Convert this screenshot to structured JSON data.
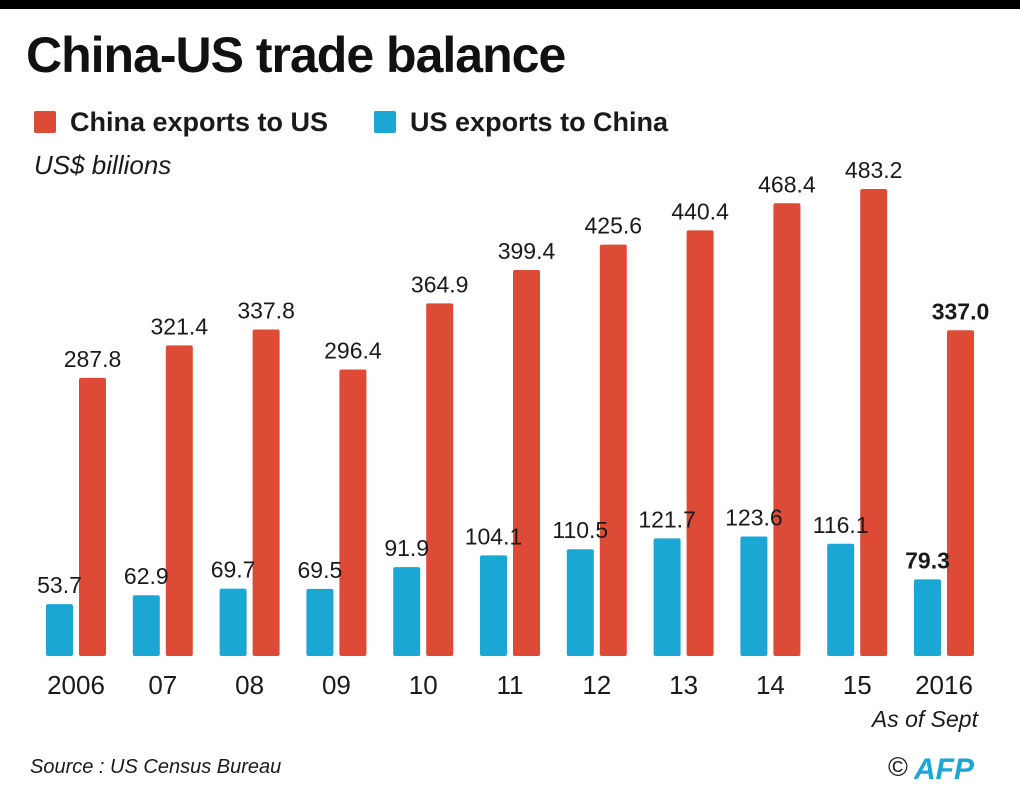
{
  "title": "China-US trade balance",
  "units": "US$ billions",
  "note": "As of Sept",
  "source": "Source : US Census Bureau",
  "credit": {
    "symbol": "©",
    "logo_text": "AFP",
    "logo_icon": "afp-logo"
  },
  "colors": {
    "china": "#dd4b36",
    "us": "#1aa7d4",
    "text": "#1a1a1a"
  },
  "chart_data": {
    "type": "bar",
    "categories": [
      "2006",
      "07",
      "08",
      "09",
      "10",
      "11",
      "12",
      "13",
      "14",
      "15",
      "2016"
    ],
    "series": [
      {
        "name": "US exports to China",
        "values": [
          53.7,
          62.9,
          69.7,
          69.5,
          91.9,
          104.1,
          110.5,
          121.7,
          123.6,
          116.1,
          79.3
        ]
      },
      {
        "name": "China exports to US",
        "values": [
          287.8,
          321.4,
          337.8,
          296.4,
          364.9,
          399.4,
          425.6,
          440.4,
          468.4,
          483.2,
          337.0
        ]
      }
    ],
    "ylabel": "US$ billions",
    "ylim": [
      0,
      483.2
    ],
    "grid": false,
    "legend_position": "top-left",
    "highlight_category": "2016"
  }
}
